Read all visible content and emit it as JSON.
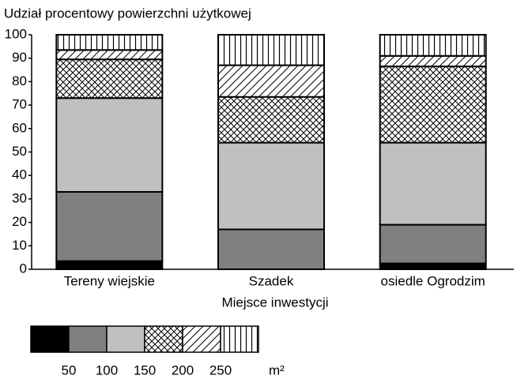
{
  "chart_data": {
    "type": "stacked_bar",
    "title": "Udział procentowy powierzchni użytkowej",
    "x_label": "Miejsce inwestycji",
    "categories": [
      "Tereny wiejskie",
      "Szadek",
      "osiedle Ogrodzim"
    ],
    "series": [
      {
        "color": "#000000",
        "values": [
          3.5,
          0,
          2.5
        ]
      },
      {
        "color": "#808080",
        "values": [
          29.5,
          17,
          16.5
        ]
      },
      {
        "color": "#c0c0c0",
        "values": [
          40,
          37,
          35
        ]
      },
      {
        "pattern": "crosshatch",
        "values": [
          16.5,
          19.5,
          32.5
        ]
      },
      {
        "pattern": "diagonal",
        "values": [
          4,
          13.5,
          4.5
        ]
      },
      {
        "pattern": "vertical",
        "values": [
          6.5,
          13,
          9
        ]
      }
    ],
    "ylim": [
      0,
      100
    ],
    "yticks": [
      0,
      10,
      20,
      30,
      40,
      50,
      60,
      70,
      80,
      90,
      100
    ],
    "legend_ticks": [
      "50",
      "100",
      "150",
      "200",
      "250"
    ],
    "legend_unit": "m²"
  }
}
